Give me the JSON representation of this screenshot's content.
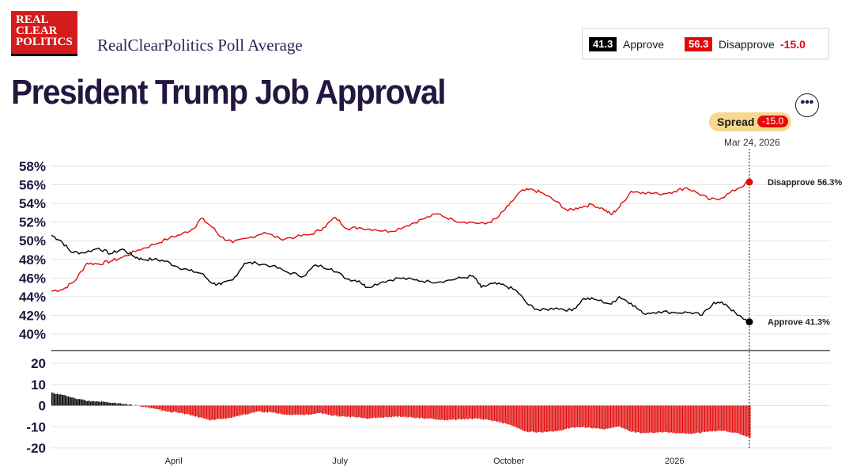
{
  "header": {
    "logo_lines": [
      "REAL",
      "CLEAR",
      "POLITICS"
    ],
    "subtitle": "RealClearPolitics Poll Average",
    "title": "President Trump Job Approval"
  },
  "legend": {
    "approve_value": "41.3",
    "approve_label": "Approve",
    "disapprove_value": "56.3",
    "disapprove_label": "Disapprove",
    "spread": "-15.0"
  },
  "controls": {
    "more_label": "•••"
  },
  "spread_pill": {
    "label": "Spread",
    "value": "-15.0"
  },
  "current_date": "Mar 24, 2026",
  "colors": {
    "approve": "#000000",
    "disapprove": "#e20b0b",
    "accent": "#23163f"
  },
  "chart_data": {
    "type": "line",
    "title": "President Trump Job Approval",
    "upper": {
      "ylim": [
        40,
        58
      ],
      "yticks": [
        "58%",
        "56%",
        "54%",
        "52%",
        "50%",
        "48%",
        "46%",
        "44%",
        "42%",
        "40%"
      ],
      "x_range": [
        0,
        1
      ],
      "series": [
        {
          "name": "Approve",
          "end_label": "Approve 41.3%",
          "points": [
            [
              0,
              50.6
            ],
            [
              0.012,
              50.0
            ],
            [
              0.025,
              48.8
            ],
            [
              0.04,
              48.7
            ],
            [
              0.06,
              49.2
            ],
            [
              0.075,
              48.6
            ],
            [
              0.09,
              49.1
            ],
            [
              0.105,
              48.3
            ],
            [
              0.115,
              48.0
            ],
            [
              0.13,
              48.0
            ],
            [
              0.145,
              47.8
            ],
            [
              0.16,
              47.2
            ],
            [
              0.175,
              46.8
            ],
            [
              0.19,
              46.5
            ],
            [
              0.205,
              45.4
            ],
            [
              0.215,
              45.3
            ],
            [
              0.23,
              45.8
            ],
            [
              0.245,
              47.6
            ],
            [
              0.26,
              47.6
            ],
            [
              0.28,
              47.3
            ],
            [
              0.3,
              46.6
            ],
            [
              0.32,
              46.2
            ],
            [
              0.335,
              47.4
            ],
            [
              0.355,
              47.0
            ],
            [
              0.375,
              45.9
            ],
            [
              0.39,
              45.7
            ],
            [
              0.4,
              45.0
            ],
            [
              0.42,
              45.6
            ],
            [
              0.44,
              46.0
            ],
            [
              0.46,
              45.8
            ],
            [
              0.48,
              45.6
            ],
            [
              0.5,
              45.7
            ],
            [
              0.52,
              46.0
            ],
            [
              0.535,
              46.2
            ],
            [
              0.545,
              45.0
            ],
            [
              0.56,
              45.4
            ],
            [
              0.575,
              45.2
            ],
            [
              0.59,
              44.6
            ],
            [
              0.605,
              43.1
            ],
            [
              0.62,
              42.5
            ],
            [
              0.64,
              42.8
            ],
            [
              0.66,
              42.5
            ],
            [
              0.675,
              43.8
            ],
            [
              0.69,
              43.7
            ],
            [
              0.71,
              43.2
            ],
            [
              0.72,
              44.0
            ],
            [
              0.735,
              43.3
            ],
            [
              0.75,
              42.2
            ],
            [
              0.77,
              42.4
            ],
            [
              0.79,
              42.3
            ],
            [
              0.81,
              42.3
            ],
            [
              0.825,
              42.0
            ],
            [
              0.84,
              43.4
            ],
            [
              0.855,
              43.2
            ],
            [
              0.87,
              42.0
            ],
            [
              0.885,
              41.3
            ]
          ]
        },
        {
          "name": "Disapprove",
          "end_label": "Disapprove 56.3%",
          "points": [
            [
              0,
              44.6
            ],
            [
              0.015,
              44.8
            ],
            [
              0.03,
              45.7
            ],
            [
              0.045,
              47.6
            ],
            [
              0.06,
              47.5
            ],
            [
              0.075,
              47.8
            ],
            [
              0.09,
              48.2
            ],
            [
              0.11,
              49.0
            ],
            [
              0.13,
              49.6
            ],
            [
              0.15,
              50.3
            ],
            [
              0.165,
              50.7
            ],
            [
              0.18,
              51.3
            ],
            [
              0.19,
              52.4
            ],
            [
              0.205,
              51.4
            ],
            [
              0.215,
              50.4
            ],
            [
              0.23,
              49.8
            ],
            [
              0.25,
              50.3
            ],
            [
              0.27,
              50.9
            ],
            [
              0.29,
              50.2
            ],
            [
              0.31,
              50.4
            ],
            [
              0.33,
              50.7
            ],
            [
              0.345,
              51.4
            ],
            [
              0.36,
              52.5
            ],
            [
              0.375,
              51.3
            ],
            [
              0.39,
              51.4
            ],
            [
              0.41,
              51.2
            ],
            [
              0.43,
              51.0
            ],
            [
              0.45,
              51.6
            ],
            [
              0.47,
              52.3
            ],
            [
              0.49,
              52.9
            ],
            [
              0.51,
              52.2
            ],
            [
              0.53,
              52.0
            ],
            [
              0.55,
              51.8
            ],
            [
              0.565,
              52.4
            ],
            [
              0.58,
              53.8
            ],
            [
              0.595,
              55.3
            ],
            [
              0.61,
              55.5
            ],
            [
              0.625,
              55.0
            ],
            [
              0.64,
              54.2
            ],
            [
              0.655,
              53.2
            ],
            [
              0.67,
              53.6
            ],
            [
              0.685,
              53.9
            ],
            [
              0.7,
              53.4
            ],
            [
              0.71,
              52.8
            ],
            [
              0.72,
              53.6
            ],
            [
              0.735,
              55.3
            ],
            [
              0.75,
              55.2
            ],
            [
              0.77,
              55.0
            ],
            [
              0.79,
              55.3
            ],
            [
              0.805,
              55.7
            ],
            [
              0.82,
              55.1
            ],
            [
              0.835,
              54.4
            ],
            [
              0.85,
              54.6
            ],
            [
              0.87,
              55.6
            ],
            [
              0.885,
              56.3
            ]
          ]
        }
      ]
    },
    "lower": {
      "ylim": [
        -20,
        20
      ],
      "yticks": [
        "20",
        "10",
        "0",
        "-10",
        "-20"
      ],
      "series": [
        {
          "name": "Spread",
          "points": [
            [
              0,
              6.0
            ],
            [
              0.012,
              5.2
            ],
            [
              0.03,
              3.4
            ],
            [
              0.05,
              2.0
            ],
            [
              0.07,
              1.6
            ],
            [
              0.09,
              0.8
            ],
            [
              0.105,
              0.2
            ],
            [
              0.115,
              -0.6
            ],
            [
              0.13,
              -1.5
            ],
            [
              0.15,
              -3.0
            ],
            [
              0.165,
              -3.6
            ],
            [
              0.18,
              -4.8
            ],
            [
              0.2,
              -6.9
            ],
            [
              0.22,
              -6.2
            ],
            [
              0.24,
              -4.6
            ],
            [
              0.26,
              -2.9
            ],
            [
              0.28,
              -3.3
            ],
            [
              0.3,
              -4.4
            ],
            [
              0.32,
              -4.4
            ],
            [
              0.34,
              -3.6
            ],
            [
              0.36,
              -5.0
            ],
            [
              0.38,
              -5.3
            ],
            [
              0.4,
              -6.0
            ],
            [
              0.42,
              -5.6
            ],
            [
              0.44,
              -5.2
            ],
            [
              0.46,
              -5.7
            ],
            [
              0.48,
              -6.3
            ],
            [
              0.5,
              -6.9
            ],
            [
              0.52,
              -6.5
            ],
            [
              0.54,
              -6.2
            ],
            [
              0.56,
              -7.3
            ],
            [
              0.58,
              -8.9
            ],
            [
              0.6,
              -12.2
            ],
            [
              0.62,
              -12.7
            ],
            [
              0.64,
              -12.1
            ],
            [
              0.66,
              -10.3
            ],
            [
              0.68,
              -10.3
            ],
            [
              0.7,
              -11.3
            ],
            [
              0.72,
              -9.9
            ],
            [
              0.735,
              -12.4
            ],
            [
              0.75,
              -13.1
            ],
            [
              0.77,
              -12.6
            ],
            [
              0.79,
              -12.9
            ],
            [
              0.81,
              -13.4
            ],
            [
              0.83,
              -12.4
            ],
            [
              0.85,
              -11.8
            ],
            [
              0.87,
              -13.2
            ],
            [
              0.885,
              -15.0
            ]
          ]
        }
      ]
    },
    "x_tick_labels": [
      "April",
      "July",
      "October",
      "2026"
    ],
    "x_tick_positions": [
      0.155,
      0.366,
      0.58,
      0.79
    ]
  }
}
